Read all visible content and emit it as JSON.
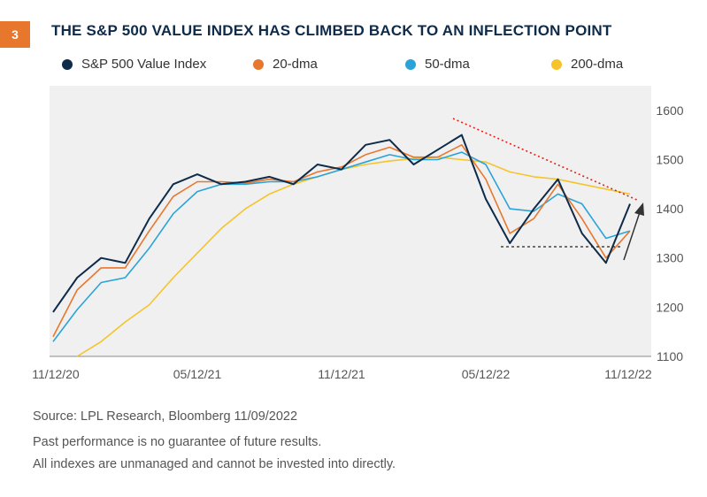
{
  "header": {
    "badge": "3",
    "title": "THE S&P 500 VALUE INDEX HAS CLIMBED BACK TO AN INFLECTION POINT"
  },
  "legend": [
    {
      "label": "S&P 500 Value Index",
      "color": "#0e2b4a"
    },
    {
      "label": "20-dma",
      "color": "#e8772e"
    },
    {
      "label": "50-dma",
      "color": "#2aa4d8"
    },
    {
      "label": "200-dma",
      "color": "#f5c42c"
    }
  ],
  "footer": {
    "source": "Source: LPL Research, Bloomberg  11/09/2022",
    "disclaimer1": "Past performance is no guarantee of future results.",
    "disclaimer2": "All indexes are unmanaged and cannot be invested into directly."
  },
  "chart_data": {
    "type": "line",
    "title": "THE S&P 500 VALUE INDEX HAS CLIMBED BACK TO AN INFLECTION POINT",
    "x_range": [
      "11/12/20",
      "11/12/22"
    ],
    "x_ticks": [
      "11/12/20",
      "05/12/21",
      "11/12/21",
      "05/12/22",
      "11/12/22"
    ],
    "ylim": [
      1100,
      1650
    ],
    "y_ticks": [
      1100,
      1200,
      1300,
      1400,
      1500,
      1600
    ],
    "grid": false,
    "legend_position": "top",
    "x_dates": [
      "11/12/20",
      "12/12/20",
      "01/12/21",
      "02/12/21",
      "03/12/21",
      "04/12/21",
      "05/12/21",
      "06/12/21",
      "07/12/21",
      "08/12/21",
      "09/12/21",
      "10/12/21",
      "11/12/21",
      "12/12/21",
      "01/12/22",
      "02/12/22",
      "03/12/22",
      "04/12/22",
      "05/12/22",
      "06/12/22",
      "07/12/22",
      "08/12/22",
      "09/12/22",
      "10/12/22",
      "11/09/22"
    ],
    "series": [
      {
        "name": "S&P 500 Value Index",
        "color": "#0e2b4a",
        "values": [
          1190,
          1260,
          1300,
          1290,
          1380,
          1450,
          1470,
          1450,
          1455,
          1465,
          1450,
          1490,
          1480,
          1530,
          1540,
          1490,
          1520,
          1550,
          1420,
          1330,
          1400,
          1460,
          1350,
          1290,
          1410
        ]
      },
      {
        "name": "20-dma",
        "color": "#e8772e",
        "values": [
          1140,
          1235,
          1280,
          1280,
          1355,
          1425,
          1455,
          1455,
          1452,
          1460,
          1455,
          1475,
          1485,
          1510,
          1525,
          1505,
          1505,
          1530,
          1460,
          1350,
          1380,
          1450,
          1380,
          1300,
          1355
        ]
      },
      {
        "name": "50-dma",
        "color": "#2aa4d8",
        "values": [
          1130,
          1195,
          1250,
          1260,
          1320,
          1390,
          1435,
          1450,
          1450,
          1455,
          1455,
          1465,
          1480,
          1495,
          1510,
          1500,
          1500,
          1515,
          1490,
          1400,
          1395,
          1430,
          1410,
          1340,
          1355
        ]
      },
      {
        "name": "200-dma",
        "color": "#f5c42c",
        "values": [
          null,
          1100,
          1130,
          1170,
          1205,
          1260,
          1310,
          1360,
          1400,
          1430,
          1450,
          1465,
          1480,
          1490,
          1497,
          1502,
          1505,
          1500,
          1495,
          1475,
          1465,
          1460,
          1450,
          1440,
          1430
        ]
      }
    ]
  }
}
